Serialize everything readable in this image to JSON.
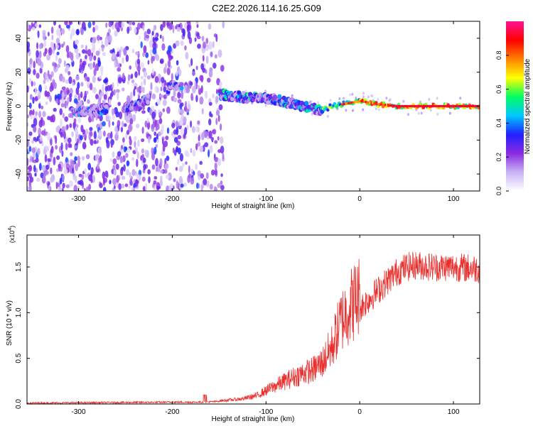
{
  "figure_title": "C2E2.2026.114.16.25.G09",
  "chart_data": [
    {
      "type": "heatmap",
      "title": "C2E2.2026.114.16.25.G09",
      "xlabel": "Height of straight line (km)",
      "ylabel": "Frequency (Hz)",
      "xlim": [
        -355,
        128
      ],
      "ylim": [
        -50,
        50
      ],
      "x_ticks": [
        -300,
        -200,
        -100,
        0,
        100
      ],
      "y_ticks": [
        -40,
        -20,
        0,
        20,
        40
      ],
      "colorbar": {
        "label": "Normalized spectral amplitude",
        "range": [
          0,
          1
        ],
        "ticks": [
          0.0,
          0.2,
          0.4,
          0.6,
          0.8
        ],
        "tick_labels": [
          "0.0",
          "0.2",
          "0.4",
          "0.6",
          "0.8"
        ],
        "colormap": [
          "#ffffff",
          "#c9b3f5",
          "#8a2be2",
          "#2020ff",
          "#00c8ff",
          "#00ff60",
          "#ffff00",
          "#ff8000",
          "#ff0000",
          "#ff1493"
        ]
      },
      "ridge": {
        "description_free_points": [
          [
            -300,
            -3
          ],
          [
            -240,
            0
          ],
          [
            -200,
            12
          ],
          [
            -180,
            10
          ],
          [
            -150,
            7
          ],
          [
            -120,
            5
          ],
          [
            -90,
            4
          ],
          [
            -60,
            0
          ],
          [
            -40,
            -3
          ],
          [
            -30,
            0
          ],
          [
            -20,
            1
          ],
          [
            -10,
            2
          ],
          [
            0,
            3
          ],
          [
            20,
            1
          ],
          [
            40,
            0
          ],
          [
            128,
            0
          ]
        ],
        "peak_amplitude": 0.95
      }
    },
    {
      "type": "line",
      "xlabel": "Height of straight line (km)",
      "ylabel": "SNR (10 * v/v)",
      "y_scale_label": "(x10",
      "y_scale_exponent": "4",
      "y_scale_suffix": ")",
      "xlim": [
        -355,
        128
      ],
      "ylim": [
        0,
        1.85
      ],
      "x_ticks": [
        -300,
        -200,
        -100,
        0,
        100
      ],
      "y_ticks": [
        0.0,
        0.5,
        1.0,
        1.5
      ],
      "y_tick_labels": [
        "0.0",
        "0.5",
        "1.0",
        "1.5"
      ],
      "series": [
        {
          "name": "SNR",
          "color": "#e8312f",
          "envelope_x": [
            -355,
            -200,
            -165,
            -150,
            -125,
            -110,
            -100,
            -80,
            -60,
            -50,
            -40,
            -30,
            -20,
            -10,
            0,
            10,
            20,
            30,
            40,
            50,
            60,
            80,
            100,
            128
          ],
          "envelope_y": [
            0.01,
            0.02,
            0.02,
            0.03,
            0.05,
            0.08,
            0.13,
            0.22,
            0.3,
            0.33,
            0.4,
            0.55,
            0.8,
            0.95,
            1.05,
            1.15,
            1.25,
            1.35,
            1.45,
            1.5,
            1.52,
            1.5,
            1.5,
            1.48
          ]
        }
      ]
    }
  ]
}
